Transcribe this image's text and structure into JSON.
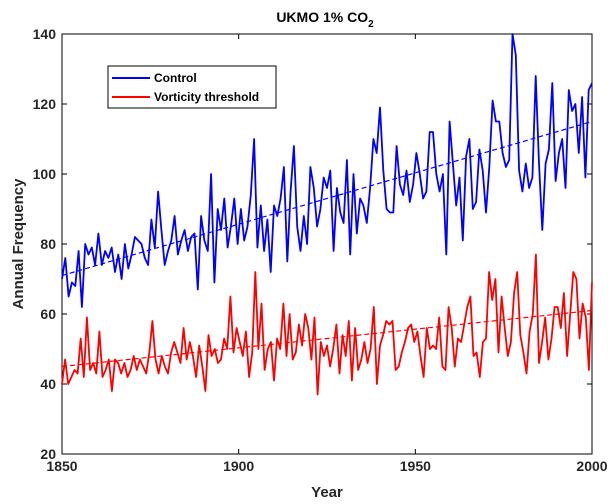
{
  "chart_data": {
    "type": "line",
    "title": "UKMO 1% CO",
    "title_subscript": "2",
    "xlabel": "Year",
    "ylabel": "Annual Frequency",
    "xlim": [
      1850,
      2000
    ],
    "ylim": [
      20,
      140
    ],
    "xticks": [
      1850,
      1900,
      1950,
      2000
    ],
    "yticks": [
      20,
      40,
      60,
      80,
      100,
      120,
      140
    ],
    "grid": false,
    "legend_position": "top-left",
    "series": [
      {
        "name": "Control",
        "color": "#0000ff",
        "x_start": 1850,
        "values": [
          70,
          76,
          65,
          69,
          68,
          78,
          62,
          80,
          77,
          79,
          74,
          83,
          74,
          78,
          76,
          79,
          72,
          77,
          70,
          80,
          73,
          77,
          82,
          81,
          80,
          76,
          74,
          87,
          79,
          95,
          84,
          74,
          78,
          81,
          88,
          77,
          81,
          84,
          78,
          82,
          83,
          67,
          88,
          81,
          78,
          100,
          69,
          90,
          84,
          93,
          79,
          85,
          93,
          80,
          90,
          81,
          85,
          94,
          110,
          79,
          91,
          78,
          87,
          72,
          91,
          88,
          93,
          102,
          75,
          95,
          108,
          85,
          78,
          88,
          80,
          102,
          96,
          85,
          90,
          99,
          96,
          101,
          78,
          96,
          89,
          86,
          104,
          77,
          100,
          83,
          93,
          91,
          86,
          96,
          110,
          106,
          119,
          101,
          90,
          89,
          89,
          108,
          97,
          94,
          101,
          92,
          97,
          106,
          100,
          93,
          95,
          112,
          112,
          100,
          95,
          100,
          77,
          115,
          103,
          91,
          99,
          81,
          105,
          110,
          90,
          92,
          107,
          101,
          89,
          102,
          121,
          115,
          115,
          106,
          102,
          104,
          140,
          134,
          101,
          95,
          103,
          96,
          99,
          128,
          103,
          84,
          103,
          107,
          126,
          98,
          106,
          110,
          96,
          124,
          118,
          120,
          106,
          122,
          99,
          124,
          126
        ]
      },
      {
        "name": "Vorticity threshold",
        "color": "#ff0000",
        "x_start": 1850,
        "values": [
          40,
          47,
          40,
          42,
          44,
          43,
          53,
          42,
          59,
          44,
          46,
          43,
          55,
          42,
          44,
          47,
          38,
          47,
          46,
          43,
          46,
          42,
          44,
          48,
          44,
          47,
          45,
          43,
          49,
          58,
          47,
          43,
          48,
          45,
          43,
          49,
          52,
          49,
          46,
          56,
          47,
          52,
          48,
          42,
          51,
          45,
          38,
          54,
          48,
          50,
          46,
          47,
          53,
          50,
          65,
          49,
          56,
          52,
          48,
          55,
          42,
          49,
          72,
          50,
          63,
          44,
          50,
          52,
          41,
          53,
          50,
          63,
          48,
          60,
          47,
          49,
          57,
          51,
          60,
          56,
          47,
          59,
          37,
          52,
          48,
          51,
          45,
          50,
          57,
          43,
          54,
          48,
          58,
          41,
          56,
          44,
          47,
          52,
          46,
          50,
          62,
          40,
          51,
          54,
          58,
          57,
          58,
          44,
          45,
          49,
          52,
          56,
          57,
          52,
          55,
          48,
          42,
          56,
          50,
          51,
          50,
          59,
          45,
          44,
          62,
          56,
          45,
          53,
          52,
          57,
          62,
          65,
          48,
          49,
          42,
          52,
          53,
          72,
          64,
          70,
          49,
          65,
          56,
          48,
          52,
          66,
          72,
          54,
          49,
          43,
          55,
          60,
          77,
          46,
          52,
          59,
          47,
          53,
          62,
          62,
          56,
          66,
          48,
          60,
          72,
          70,
          53,
          63,
          59,
          44,
          69
        ]
      }
    ],
    "trend_lines": [
      {
        "series": "Control",
        "x": [
          1850,
          2000
        ],
        "y": [
          71,
          115
        ]
      },
      {
        "series": "Vorticity threshold",
        "x": [
          1850,
          2000
        ],
        "y": [
          45,
          61
        ]
      }
    ]
  }
}
